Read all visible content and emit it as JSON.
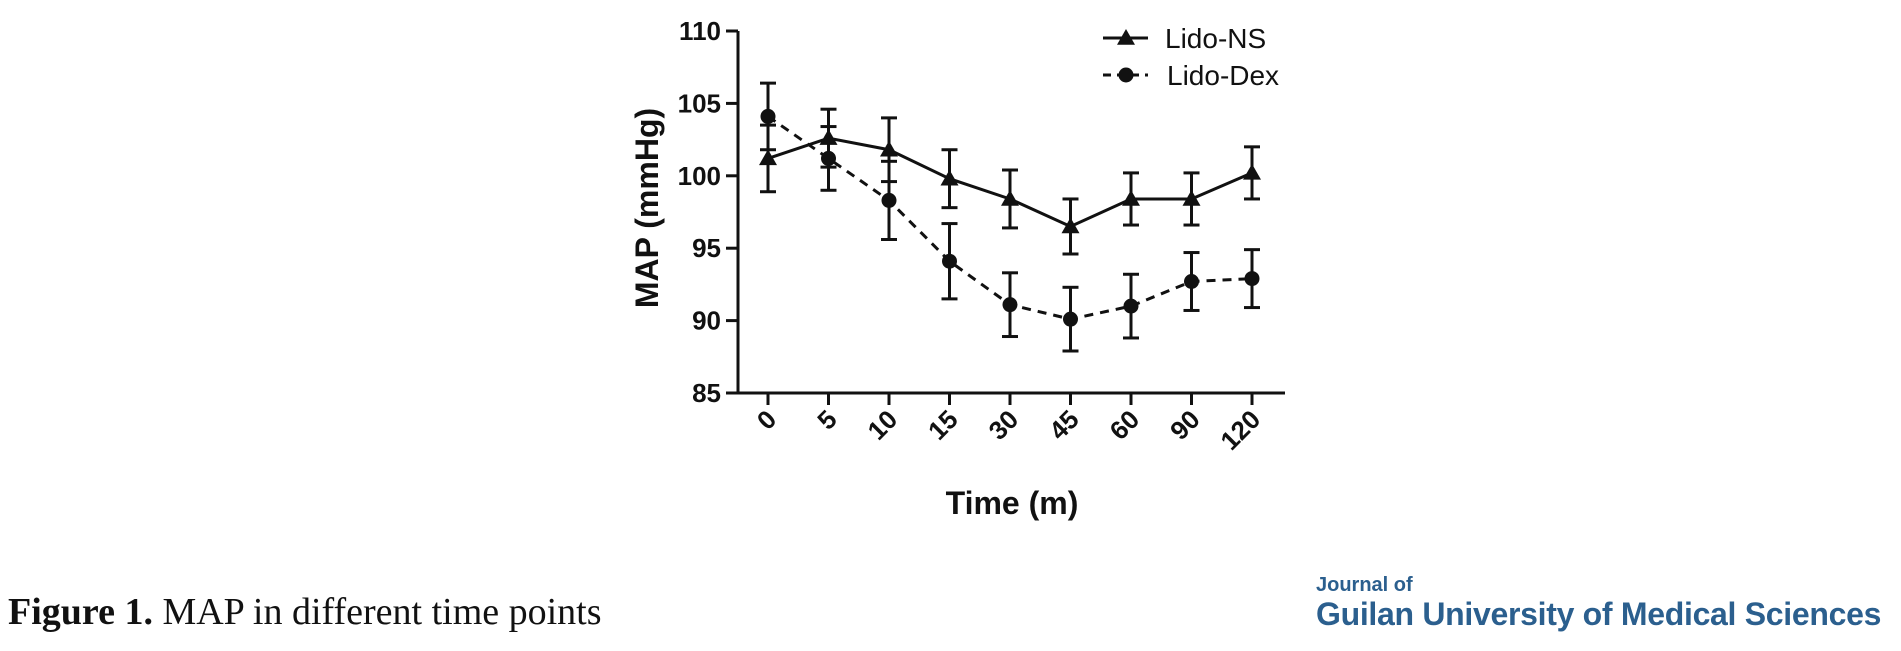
{
  "chart_data": {
    "type": "line",
    "categories": [
      "0",
      "5",
      "10",
      "15",
      "30",
      "45",
      "60",
      "90",
      "120"
    ],
    "xlabel": "Time (m)",
    "ylabel": "MAP (mmHg)",
    "ylim": [
      85,
      110
    ],
    "yticks": [
      85,
      90,
      95,
      100,
      105,
      110
    ],
    "series": [
      {
        "name": "Lido-NS",
        "marker": "triangle",
        "line_style": "solid",
        "values": [
          101.2,
          102.6,
          101.8,
          99.8,
          98.4,
          96.5,
          98.4,
          98.4,
          100.2
        ],
        "error": [
          2.3,
          2.0,
          2.2,
          2.0,
          2.0,
          1.9,
          1.8,
          1.8,
          1.8
        ]
      },
      {
        "name": "Lido-Dex",
        "marker": "circle",
        "line_style": "dashed",
        "values": [
          104.1,
          101.2,
          98.3,
          94.1,
          91.1,
          90.1,
          91.0,
          92.7,
          92.9
        ],
        "error": [
          2.3,
          2.2,
          2.7,
          2.6,
          2.2,
          2.2,
          2.2,
          2.0,
          2.0
        ]
      }
    ],
    "legend_position": "top-right",
    "colors": {
      "line": "#111111"
    }
  },
  "caption": {
    "label": "Figure 1.",
    "text": " MAP in different time points"
  },
  "journal": {
    "line1": "Journal of",
    "line2": "Guilan University of Medical Sciences",
    "color": "#2b5f8e"
  }
}
